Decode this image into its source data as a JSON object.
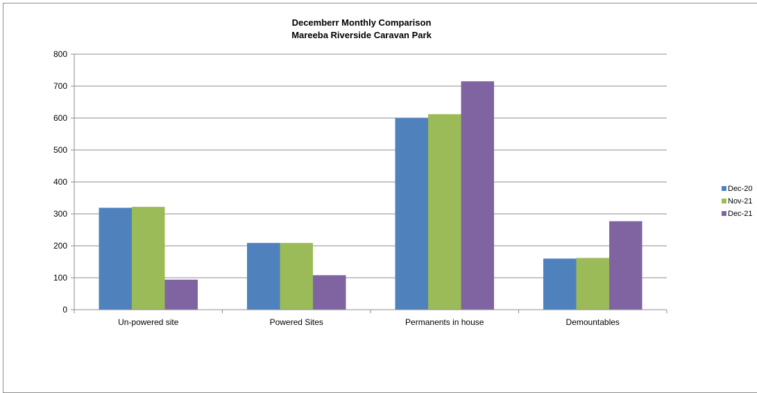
{
  "chart_data": {
    "type": "bar",
    "title": "Decemberr Monthly Comparison",
    "subtitle": "Mareeba Riverside Caravan Park",
    "categories": [
      "Un-powered site",
      "Powered Sites",
      "Permanents in house",
      "Demountables"
    ],
    "series": [
      {
        "name": "Dec-20",
        "color": "#4f81bd",
        "values": [
          319,
          209,
          600,
          160
        ]
      },
      {
        "name": "Nov-21",
        "color": "#9bbb59",
        "values": [
          322,
          209,
          612,
          162
        ]
      },
      {
        "name": "Dec-21",
        "color": "#8064a2",
        "values": [
          94,
          108,
          715,
          277
        ]
      }
    ],
    "ylim": [
      0,
      800
    ],
    "yticks": [
      0,
      100,
      200,
      300,
      400,
      500,
      600,
      700,
      800
    ],
    "xlabel": "",
    "ylabel": "",
    "grid": true,
    "legend": "right"
  }
}
